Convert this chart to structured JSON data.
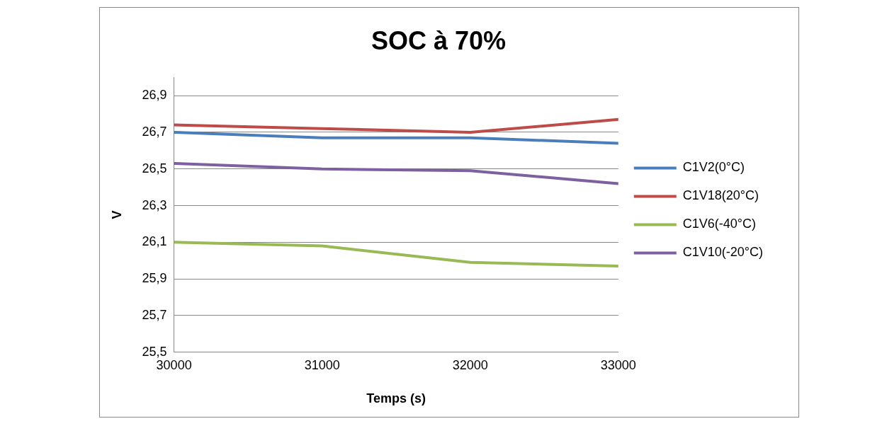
{
  "chart_data": {
    "type": "line",
    "title": "SOC à 70%",
    "xlabel": "Temps (s)",
    "ylabel": "V",
    "x": [
      30000,
      31000,
      32000,
      33000
    ],
    "series": [
      {
        "name": "C1V2(0°C)",
        "color": "#4a7ebb",
        "values": [
          26.7,
          26.67,
          26.67,
          26.64
        ]
      },
      {
        "name": "C1V18(20°C)",
        "color": "#be4b48",
        "values": [
          26.74,
          26.72,
          26.7,
          26.77
        ]
      },
      {
        "name": "C1V6(-40°C)",
        "color": "#98b954",
        "values": [
          26.1,
          26.08,
          25.99,
          25.97
        ]
      },
      {
        "name": "C1V10(-20°C)",
        "color": "#7d60a0",
        "values": [
          26.53,
          26.5,
          26.49,
          26.42
        ]
      }
    ],
    "xlim": [
      30000,
      33000
    ],
    "xticks": [
      30000,
      31000,
      32000,
      33000
    ],
    "ylim": [
      25.5,
      27.0
    ],
    "yticks": [
      {
        "value": 25.5,
        "label": "25,5"
      },
      {
        "value": 25.7,
        "label": "25,7"
      },
      {
        "value": 25.9,
        "label": "25,9"
      },
      {
        "value": 26.1,
        "label": "26,1"
      },
      {
        "value": 26.3,
        "label": "26,3"
      },
      {
        "value": 26.5,
        "label": "26,5"
      },
      {
        "value": 26.7,
        "label": "26,7"
      },
      {
        "value": 26.9,
        "label": "26,9"
      }
    ],
    "grid": "y",
    "legend": "right",
    "marker": "none",
    "line_style": "solid"
  }
}
